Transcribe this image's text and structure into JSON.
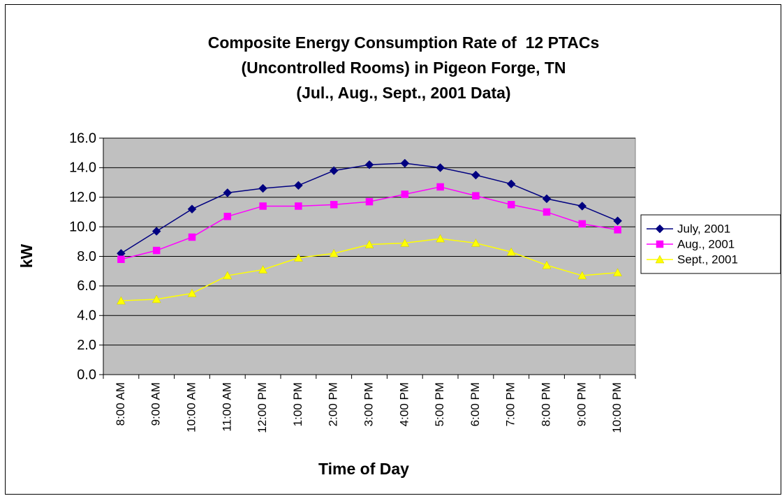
{
  "chart_data": {
    "type": "line",
    "title": [
      "Composite Energy Consumption Rate of  12 PTACs",
      "(Uncontrolled Rooms) in Pigeon Forge, TN",
      "(Jul., Aug., Sept., 2001 Data)"
    ],
    "x_label": "Time of Day",
    "y_label": "kW",
    "categories": [
      "8:00 AM",
      "9:00 AM",
      "10:00 AM",
      "11:00 AM",
      "12:00 PM",
      "1:00 PM",
      "2:00 PM",
      "3:00 PM",
      "4:00 PM",
      "5:00 PM",
      "6:00 PM",
      "7:00 PM",
      "8:00 PM",
      "9:00 PM",
      "10:00 PM"
    ],
    "series": [
      {
        "name": "July, 2001",
        "color": "#000080",
        "marker": "diamond",
        "values": [
          8.2,
          9.7,
          11.2,
          12.3,
          12.6,
          12.8,
          13.8,
          14.2,
          14.3,
          14.0,
          13.5,
          12.9,
          11.9,
          11.4,
          10.4
        ]
      },
      {
        "name": "Aug., 2001",
        "color": "#ff00ff",
        "marker": "square",
        "values": [
          7.8,
          8.4,
          9.3,
          10.7,
          11.4,
          11.4,
          11.5,
          11.7,
          12.2,
          12.7,
          12.1,
          11.5,
          11.0,
          10.2,
          9.8
        ]
      },
      {
        "name": "Sept., 2001",
        "color": "#ffff00",
        "marker": "triangle",
        "values": [
          5.0,
          5.1,
          5.5,
          6.7,
          7.1,
          7.9,
          8.2,
          8.8,
          8.9,
          9.2,
          8.9,
          8.3,
          7.4,
          6.7,
          6.9
        ]
      }
    ],
    "ylim": [
      0,
      16
    ],
    "yticks": [
      {
        "value": 0,
        "label": "0.0"
      },
      {
        "value": 2,
        "label": "2.0"
      },
      {
        "value": 4,
        "label": "4.0"
      },
      {
        "value": 6,
        "label": "6.0"
      },
      {
        "value": 8,
        "label": "8.0"
      },
      {
        "value": 10,
        "label": "10.0"
      },
      {
        "value": 12,
        "label": "12.0"
      },
      {
        "value": 14,
        "label": "14.0"
      },
      {
        "value": 16,
        "label": "16.0"
      }
    ],
    "grid": true,
    "legend": "right",
    "plot_background": "#c0c0c0"
  }
}
